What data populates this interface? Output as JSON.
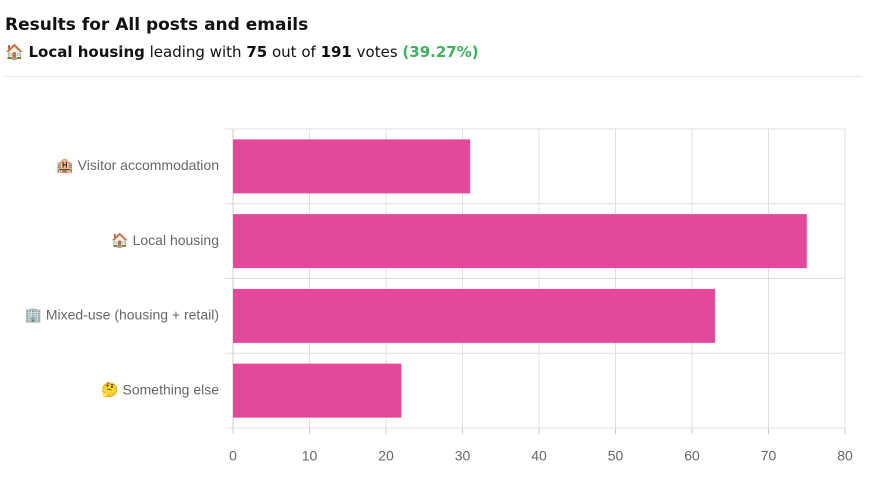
{
  "summary": {
    "title": "Results for All posts and emails",
    "icon": "🏠",
    "leader": "Local housing",
    "phrase_leading": "leading with",
    "phrase_out_of": "out of",
    "total": 191,
    "phrase_votes": "votes",
    "percent": "(39.27%)"
  },
  "chart_data": {
    "type": "barh",
    "categories": [
      "🏨 Visitor accommodation",
      "🏠 Local housing",
      "🏢 Mixed-use (housing + retail)",
      "🤔 Something else"
    ],
    "values": [
      31,
      75,
      63,
      22
    ],
    "color": "#e3489a",
    "xlim": [
      0,
      80
    ],
    "xticks": [
      0,
      10,
      20,
      30,
      40,
      50,
      60,
      70,
      80
    ],
    "grid": true
  }
}
